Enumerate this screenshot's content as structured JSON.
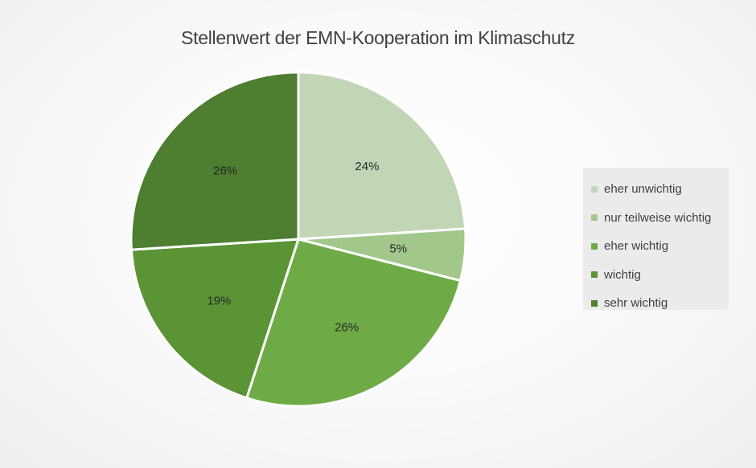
{
  "chart_data": {
    "type": "pie",
    "title": "Stellenwert der EMN-Kooperation im Klimaschutz",
    "categories": [
      "eher unwichtig",
      "nur teilweise wichtig",
      "eher wichtig",
      "wichtig",
      "sehr wichtig"
    ],
    "values": [
      24,
      5,
      26,
      19,
      26
    ],
    "labels": [
      "24%",
      "5%",
      "26%",
      "19%",
      "26%"
    ],
    "colors": [
      "#c2d6b6",
      "#a2c78a",
      "#6eab46",
      "#5b9435",
      "#4e7e30"
    ],
    "legend_position": "right"
  }
}
